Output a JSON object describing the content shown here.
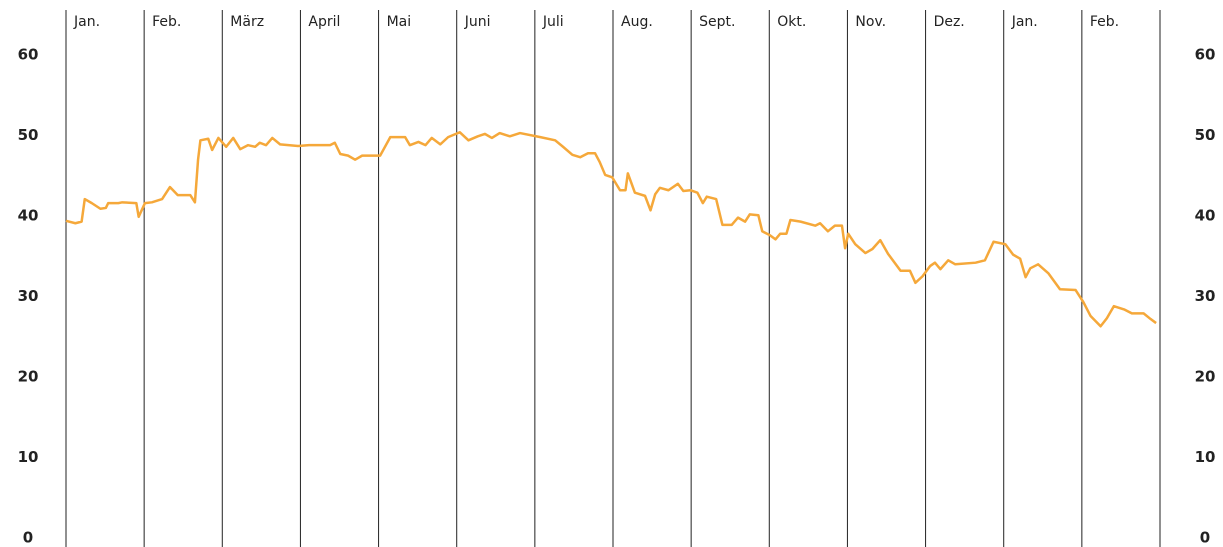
{
  "chart_data": {
    "type": "line",
    "categories": [
      "Jan.",
      "Feb.",
      "März",
      "April",
      "Mai",
      "Juni",
      "Juli",
      "Aug.",
      "Sept.",
      "Okt.",
      "Nov.",
      "Dez.",
      "Jan.",
      "Feb."
    ],
    "xlim": [
      0,
      14
    ],
    "ylim": [
      0,
      60
    ],
    "yticks": [
      0,
      10,
      20,
      30,
      40,
      50,
      60
    ],
    "y2lim": [
      0,
      60
    ],
    "y2ticks": [
      0,
      10,
      20,
      30,
      40,
      50,
      60
    ],
    "series": [
      {
        "color": "#f5a83a",
        "x": [
          0,
          0.12,
          0.2,
          0.24,
          0.33,
          0.44,
          0.51,
          0.54,
          0.67,
          0.72,
          0.9,
          0.93,
          1.01,
          1.1,
          1.23,
          1.33,
          1.43,
          1.59,
          1.65,
          1.69,
          1.72,
          1.82,
          1.87,
          1.95,
          2.05,
          2.14,
          2.23,
          2.33,
          2.42,
          2.48,
          2.56,
          2.64,
          2.74,
          2.97,
          3.11,
          3.38,
          3.44,
          3.51,
          3.61,
          3.7,
          3.79,
          4.02,
          4.15,
          4.34,
          4.4,
          4.51,
          4.6,
          4.68,
          4.79,
          4.89,
          5.04,
          5.15,
          5.27,
          5.36,
          5.45,
          5.55,
          5.68,
          5.81,
          6.07,
          6.26,
          6.36,
          6.48,
          6.58,
          6.68,
          6.77,
          6.83,
          6.9,
          6.99,
          7.09,
          7.16,
          7.19,
          7.28,
          7.41,
          7.48,
          7.54,
          7.6,
          7.71,
          7.83,
          7.9,
          7.99,
          8.08,
          8.15,
          8.2,
          8.32,
          8.4,
          8.52,
          8.6,
          8.69,
          8.75,
          8.86,
          8.91,
          9.01,
          9.08,
          9.14,
          9.22,
          9.27,
          9.4,
          9.59,
          9.65,
          9.75,
          9.84,
          9.93,
          9.97,
          10.01,
          10.1,
          10.23,
          10.32,
          10.42,
          10.52,
          10.68,
          10.8,
          10.87,
          10.96,
          11.06,
          11.12,
          11.19,
          11.29,
          11.38,
          11.64,
          11.76,
          11.87,
          12.02,
          12.12,
          12.21,
          12.28,
          12.34,
          12.44,
          12.57,
          12.72,
          12.92,
          13.02,
          13.11,
          13.24,
          13.32,
          13.41,
          13.54,
          13.64,
          13.79,
          13.88,
          13.95
        ],
        "values": [
          39.4,
          39.1,
          39.3,
          42.1,
          41.6,
          40.9,
          41.0,
          41.6,
          41.6,
          41.7,
          41.6,
          39.9,
          41.6,
          41.7,
          42.1,
          43.6,
          42.6,
          42.6,
          41.7,
          47.0,
          49.4,
          49.6,
          48.2,
          49.7,
          48.6,
          49.7,
          48.3,
          48.8,
          48.6,
          49.1,
          48.8,
          49.7,
          48.9,
          48.7,
          48.8,
          48.8,
          49.1,
          47.7,
          47.5,
          47.0,
          47.5,
          47.5,
          49.8,
          49.8,
          48.8,
          49.2,
          48.8,
          49.7,
          48.9,
          49.8,
          50.4,
          49.4,
          49.9,
          50.2,
          49.7,
          50.3,
          49.9,
          50.3,
          49.8,
          49.4,
          48.6,
          47.6,
          47.3,
          47.8,
          47.8,
          46.7,
          45.1,
          44.8,
          43.2,
          43.2,
          45.3,
          42.9,
          42.5,
          40.7,
          42.7,
          43.5,
          43.2,
          44.0,
          43.1,
          43.2,
          42.9,
          41.6,
          42.4,
          42.1,
          38.9,
          38.9,
          39.8,
          39.3,
          40.2,
          40.1,
          38.1,
          37.6,
          37.1,
          37.8,
          37.8,
          39.5,
          39.3,
          38.8,
          39.1,
          38.1,
          38.8,
          38.8,
          36.0,
          37.8,
          36.5,
          35.4,
          35.9,
          37.0,
          35.3,
          33.2,
          33.2,
          31.7,
          32.5,
          33.8,
          34.2,
          33.4,
          34.5,
          34.0,
          34.2,
          34.5,
          36.8,
          36.5,
          35.2,
          34.7,
          32.4,
          33.5,
          34.0,
          32.9,
          30.9,
          30.8,
          29.3,
          27.6,
          26.3,
          27.3,
          28.8,
          28.4,
          27.9,
          27.9,
          27.2,
          26.7
        ]
      }
    ]
  }
}
